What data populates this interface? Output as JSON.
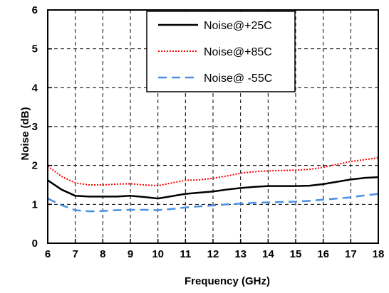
{
  "chart_data": {
    "type": "line",
    "xlabel": "Frequency (GHz)",
    "ylabel": "Noise (dB)",
    "xlim": [
      6,
      18
    ],
    "ylim": [
      0,
      6
    ],
    "xticks": [
      6,
      7,
      8,
      9,
      10,
      11,
      12,
      13,
      14,
      15,
      16,
      17,
      18
    ],
    "yticks": [
      0,
      1,
      2,
      3,
      4,
      5,
      6
    ],
    "grid": true,
    "grid_style": "dashed",
    "legend_position": "top-right",
    "series": [
      {
        "name": "Noise@+25C",
        "color": "#000000",
        "line_style": "solid",
        "x": [
          6,
          6.5,
          7,
          7.5,
          8,
          8.5,
          9,
          9.5,
          10,
          10.5,
          11,
          11.5,
          12,
          12.5,
          13,
          13.5,
          14,
          14.5,
          15,
          15.5,
          16,
          16.5,
          17,
          17.5,
          18
        ],
        "y": [
          1.62,
          1.38,
          1.22,
          1.2,
          1.2,
          1.2,
          1.22,
          1.19,
          1.15,
          1.21,
          1.27,
          1.3,
          1.33,
          1.38,
          1.42,
          1.45,
          1.47,
          1.47,
          1.47,
          1.48,
          1.52,
          1.58,
          1.64,
          1.68,
          1.7
        ]
      },
      {
        "name": "Noise@+85C",
        "color": "#ff0000",
        "line_style": "dotted",
        "x": [
          6,
          6.5,
          7,
          7.5,
          8,
          8.5,
          9,
          9.5,
          10,
          10.5,
          11,
          11.5,
          12,
          12.5,
          13,
          13.5,
          14,
          14.5,
          15,
          15.5,
          16,
          16.5,
          17,
          17.5,
          18
        ],
        "y": [
          1.98,
          1.72,
          1.55,
          1.5,
          1.5,
          1.52,
          1.53,
          1.5,
          1.48,
          1.55,
          1.62,
          1.63,
          1.67,
          1.73,
          1.8,
          1.84,
          1.86,
          1.87,
          1.88,
          1.9,
          1.95,
          2.03,
          2.1,
          2.15,
          2.2
        ]
      },
      {
        "name": "Noise@ -55C",
        "color": "#4a90e2",
        "line_style": "dashed",
        "x": [
          6,
          6.5,
          7,
          7.5,
          8,
          8.5,
          9,
          9.5,
          10,
          10.5,
          11,
          11.5,
          12,
          12.5,
          13,
          13.5,
          14,
          14.5,
          15,
          15.5,
          16,
          16.5,
          17,
          17.5,
          18
        ],
        "y": [
          1.15,
          0.98,
          0.85,
          0.82,
          0.83,
          0.85,
          0.86,
          0.86,
          0.85,
          0.88,
          0.92,
          0.95,
          0.97,
          1.0,
          1.02,
          1.04,
          1.05,
          1.06,
          1.07,
          1.09,
          1.12,
          1.15,
          1.18,
          1.23,
          1.27
        ]
      }
    ]
  }
}
